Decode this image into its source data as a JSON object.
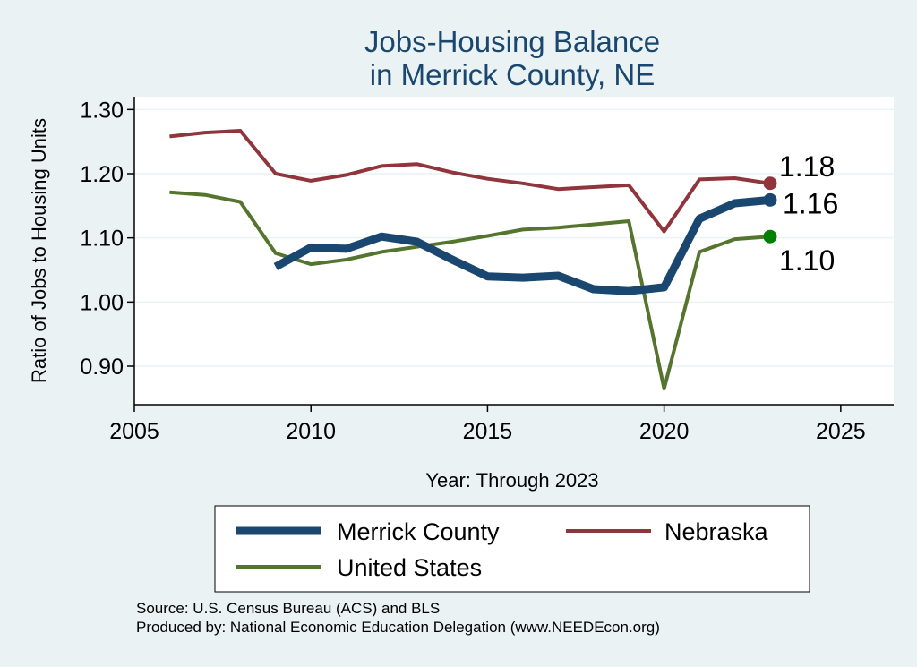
{
  "chart_data": {
    "type": "line",
    "title": [
      "Jobs-Housing Balance",
      "in Merrick County, NE"
    ],
    "xlabel": "Year: Through 2023",
    "ylabel": "Ratio of Jobs to Housing Units",
    "xlim": [
      2005,
      2026.5
    ],
    "ylim": [
      0.84,
      1.32
    ],
    "xticks": [
      2005,
      2010,
      2015,
      2020,
      2025
    ],
    "yticks": [
      0.9,
      1.0,
      1.1,
      1.2,
      1.3
    ],
    "ytick_labels": [
      "0.90",
      "1.00",
      "1.10",
      "1.20",
      "1.30"
    ],
    "grid": true,
    "series": [
      {
        "name": "Merrick County",
        "color": "#1a476f",
        "width": 9,
        "x": [
          2009,
          2010,
          2011,
          2012,
          2013,
          2014,
          2015,
          2016,
          2017,
          2018,
          2019,
          2020,
          2021,
          2022,
          2023
        ],
        "values": [
          1.055,
          1.085,
          1.083,
          1.102,
          1.094,
          1.066,
          1.04,
          1.038,
          1.041,
          1.02,
          1.017,
          1.023,
          1.13,
          1.154,
          1.159
        ],
        "end_label": "1.16",
        "end_marker_color": "#1a476f"
      },
      {
        "name": "Nebraska",
        "color": "#90353b",
        "width": 4,
        "x": [
          2006,
          2007,
          2008,
          2009,
          2010,
          2011,
          2012,
          2013,
          2014,
          2015,
          2016,
          2017,
          2018,
          2019,
          2020,
          2021,
          2022,
          2023
        ],
        "values": [
          1.258,
          1.264,
          1.267,
          1.2,
          1.189,
          1.198,
          1.212,
          1.215,
          1.202,
          1.192,
          1.185,
          1.176,
          1.179,
          1.182,
          1.11,
          1.191,
          1.193,
          1.185
        ],
        "end_label": "1.18",
        "end_marker_color": "#90353b"
      },
      {
        "name": "United States",
        "color": "#55752f",
        "width": 4,
        "x": [
          2006,
          2007,
          2008,
          2009,
          2010,
          2011,
          2012,
          2013,
          2014,
          2015,
          2016,
          2017,
          2018,
          2019,
          2020,
          2021,
          2022,
          2023
        ],
        "values": [
          1.171,
          1.167,
          1.156,
          1.076,
          1.059,
          1.066,
          1.078,
          1.086,
          1.094,
          1.103,
          1.113,
          1.116,
          1.121,
          1.126,
          0.865,
          1.078,
          1.098,
          1.102
        ],
        "end_label": "1.10",
        "end_marker_color": "#008000"
      }
    ],
    "legend": {
      "placement": "bottom",
      "entries": [
        "Merrick County",
        "Nebraska",
        "United States"
      ]
    },
    "notes": [
      "Source: U.S. Census Bureau (ACS) and BLS",
      "Produced by: National Economic Education Delegation (www.NEEDEcon.org)"
    ]
  }
}
